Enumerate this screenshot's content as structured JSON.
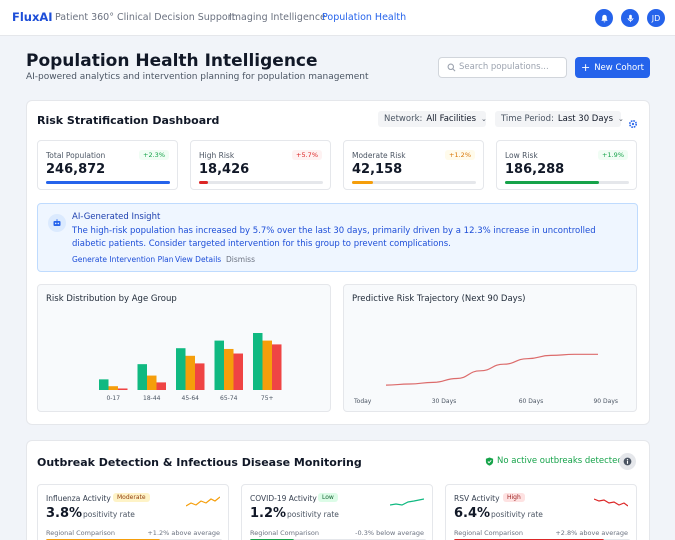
{
  "nav": {
    "logo": "FluxAI",
    "links": [
      "Patient 360°",
      "Clinical Decision Support",
      "Imaging Intelligence",
      "Population Health"
    ],
    "active_index": 3,
    "avatar_initials": "JD",
    "icons": [
      "bell-icon",
      "microphone-icon"
    ]
  },
  "header": {
    "title": "Population Health Intelligence",
    "subtitle": "AI-powered analytics and intervention planning for population management",
    "search_placeholder": "Search populations...",
    "new_cohort_label": "New Cohort"
  },
  "dashboard": {
    "title": "Risk Stratification Dashboard",
    "network_label": "Network:",
    "network_value": "All Facilities",
    "period_label": "Time Period:",
    "period_value": "Last 30 Days",
    "stats": [
      {
        "label": "Total Population",
        "value": "246,872",
        "change": "+2.3%",
        "color": "#2563eb",
        "badge_color": "#16a34a",
        "badge_bg": "#f0fdf4",
        "fill": 1.0
      },
      {
        "label": "High Risk",
        "value": "18,426",
        "change": "+5.7%",
        "color": "#dc2626",
        "badge_color": "#dc2626",
        "badge_bg": "#fef2f2",
        "fill": 0.07
      },
      {
        "label": "Moderate Risk",
        "value": "42,158",
        "change": "+1.2%",
        "color": "#f59e0b",
        "badge_color": "#d97706",
        "badge_bg": "#fffbeb",
        "fill": 0.17
      },
      {
        "label": "Low Risk",
        "value": "186,288",
        "change": "+1.9%",
        "color": "#16a34a",
        "badge_color": "#16a34a",
        "badge_bg": "#f0fdf4",
        "fill": 0.76
      }
    ],
    "insight": {
      "title": "AI-Generated Insight",
      "body": "The high-risk population has increased by 5.7% over the last 30 days, primarily driven by a 12.3% increase in uncontrolled diabetic patients. Consider targeted intervention for this group to prevent complications.",
      "actions": [
        "Generate Intervention Plan",
        "View Details",
        "Dismiss"
      ]
    },
    "age_chart_title": "Risk Distribution by Age Group",
    "trajectory_title": "Predictive Risk Trajectory (Next 90 Days)"
  },
  "chart_data": [
    {
      "type": "bar",
      "title": "Risk Distribution by Age Group",
      "categories": [
        "0-17",
        "18-44",
        "45-64",
        "65-74",
        "75+"
      ],
      "colors": [
        "#10b981",
        "#f59e0b",
        "#ef4444"
      ],
      "series": [
        {
          "values": [
            14,
            34,
            55,
            65,
            75
          ]
        },
        {
          "values": [
            5,
            19,
            45,
            54,
            65
          ]
        },
        {
          "values": [
            2,
            10,
            35,
            48,
            60
          ]
        }
      ],
      "ylim": [
        0,
        100
      ]
    },
    {
      "type": "line",
      "title": "Predictive Risk Trajectory (Next 90 Days)",
      "x": [
        0,
        10,
        20,
        30,
        40,
        50,
        60,
        70,
        80,
        90
      ],
      "x_tick_labels": [
        "Today",
        "30 Days",
        "60 Days",
        "90 Days"
      ],
      "x_tick_positions": [
        0,
        30,
        60,
        90
      ],
      "values": [
        9,
        10,
        11.5,
        15,
        22,
        28,
        33,
        36,
        37,
        37
      ],
      "ylim": [
        0,
        80
      ],
      "color": "#dc6b6b"
    }
  ],
  "outbreak": {
    "title": "Outbreak Detection & Infectious Disease Monitoring",
    "status": "No active outbreaks detected",
    "cards": [
      {
        "name": "Influenza Activity",
        "level": "Moderate",
        "level_color": "#92400e",
        "level_bg": "#fef3c7",
        "rate": "3.8%",
        "rate_label": "positivity rate",
        "regional_label": "Regional Comparison",
        "regional_value": "+1.2% above average",
        "bar_color": "#f59e0b",
        "bar_fill": 0.65,
        "spark_color": "#f59e0b"
      },
      {
        "name": "COVID-19 Activity",
        "level": "Low",
        "level_color": "#166534",
        "level_bg": "#dcfce7",
        "rate": "1.2%",
        "rate_label": "positivity rate",
        "regional_label": "Regional Comparison",
        "regional_value": "-0.3% below average",
        "bar_color": "#16a34a",
        "bar_fill": 0.25,
        "spark_color": "#10b981"
      },
      {
        "name": "RSV Activity",
        "level": "High",
        "level_color": "#991b1b",
        "level_bg": "#fee2e2",
        "rate": "6.4%",
        "rate_label": "positivity rate",
        "regional_label": "Regional Comparison",
        "regional_value": "+2.8% above average",
        "bar_color": "#dc2626",
        "bar_fill": 0.85,
        "spark_color": "#dc2626"
      }
    ]
  }
}
